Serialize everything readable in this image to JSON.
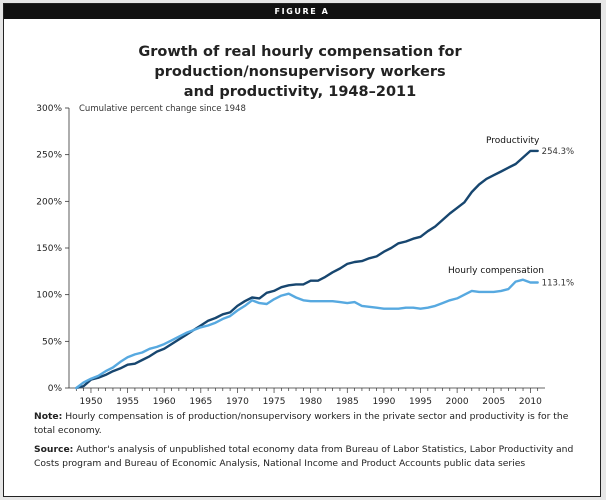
{
  "figure": {
    "banner": "FIGURE A",
    "title_line1": "Growth of real hourly compensation for production/nonsupervisory workers",
    "title_line2": "and productivity, 1948–2011",
    "note_label": "Note:",
    "note_text": "Hourly compensation is of production/nonsupervisory workers in the private sector and productivity is for the total economy.",
    "source_label": "Source:",
    "source_text": "Author's analysis of unpublished total economy data from Bureau of Labor Statistics, Labor Productivity and Costs program and Bureau of Economic Analysis, National Income and Product Accounts public data series"
  },
  "colors": {
    "productivity": "#17466f",
    "compensation": "#57a9e0",
    "axis": "#333333"
  },
  "chart_data": {
    "type": "line",
    "title": "Growth of real hourly compensation for production/nonsupervisory workers and productivity, 1948–2011",
    "ylabel": "Cumulative percent change since 1948",
    "xlabel": "",
    "xlim": [
      1947,
      2012
    ],
    "ylim": [
      0,
      300
    ],
    "y_ticks": [
      0,
      50,
      100,
      150,
      200,
      250,
      300
    ],
    "y_tick_labels": [
      "0%",
      "50%",
      "100%",
      "150%",
      "200%",
      "250%",
      "300%"
    ],
    "x_ticks": [
      1950,
      1955,
      1960,
      1965,
      1970,
      1975,
      1980,
      1985,
      1990,
      1995,
      2000,
      2005,
      2010
    ],
    "grid": false,
    "series": [
      {
        "name": "Productivity",
        "end_label": "254.3%",
        "x": [
          1948,
          1949,
          1950,
          1951,
          1952,
          1953,
          1954,
          1955,
          1956,
          1957,
          1958,
          1959,
          1960,
          1961,
          1962,
          1963,
          1964,
          1965,
          1966,
          1967,
          1968,
          1969,
          1970,
          1971,
          1972,
          1973,
          1974,
          1975,
          1976,
          1977,
          1978,
          1979,
          1980,
          1981,
          1982,
          1983,
          1984,
          1985,
          1986,
          1987,
          1988,
          1989,
          1990,
          1991,
          1992,
          1993,
          1994,
          1995,
          1996,
          1997,
          1998,
          1999,
          2000,
          2001,
          2002,
          2003,
          2004,
          2005,
          2006,
          2007,
          2008,
          2009,
          2010,
          2011
        ],
        "values": [
          0,
          2,
          9,
          11,
          14,
          18,
          21,
          25,
          26,
          30,
          34,
          39,
          42,
          47,
          52,
          57,
          62,
          67,
          72,
          75,
          79,
          81,
          88,
          93,
          97,
          96,
          102,
          104,
          108,
          110,
          111,
          111,
          115,
          115,
          119,
          124,
          128,
          133,
          135,
          136,
          139,
          141,
          146,
          150,
          155,
          157,
          160,
          162,
          168,
          173,
          180,
          187,
          193,
          199,
          210,
          218,
          224,
          228,
          232,
          236,
          240,
          247,
          254,
          254
        ]
      },
      {
        "name": "Hourly compensation",
        "end_label": "113.1%",
        "x": [
          1948,
          1949,
          1950,
          1951,
          1952,
          1953,
          1954,
          1955,
          1956,
          1957,
          1958,
          1959,
          1960,
          1961,
          1962,
          1963,
          1964,
          1965,
          1966,
          1967,
          1968,
          1969,
          1970,
          1971,
          1972,
          1973,
          1974,
          1975,
          1976,
          1977,
          1978,
          1979,
          1980,
          1981,
          1982,
          1983,
          1984,
          1985,
          1986,
          1987,
          1988,
          1989,
          1990,
          1991,
          1992,
          1993,
          1994,
          1995,
          1996,
          1997,
          1998,
          1999,
          2000,
          2001,
          2002,
          2003,
          2004,
          2005,
          2006,
          2007,
          2008,
          2009,
          2010,
          2011
        ],
        "values": [
          0,
          6,
          10,
          13,
          18,
          22,
          28,
          33,
          36,
          38,
          42,
          44,
          47,
          51,
          55,
          59,
          62,
          65,
          67,
          70,
          74,
          77,
          83,
          88,
          94,
          91,
          90,
          95,
          99,
          101,
          97,
          94,
          93,
          93,
          93,
          93,
          92,
          91,
          92,
          88,
          87,
          86,
          85,
          85,
          85,
          86,
          86,
          85,
          86,
          88,
          91,
          94,
          96,
          100,
          104,
          103,
          103,
          103,
          104,
          106,
          114,
          116,
          113,
          113
        ]
      }
    ]
  }
}
